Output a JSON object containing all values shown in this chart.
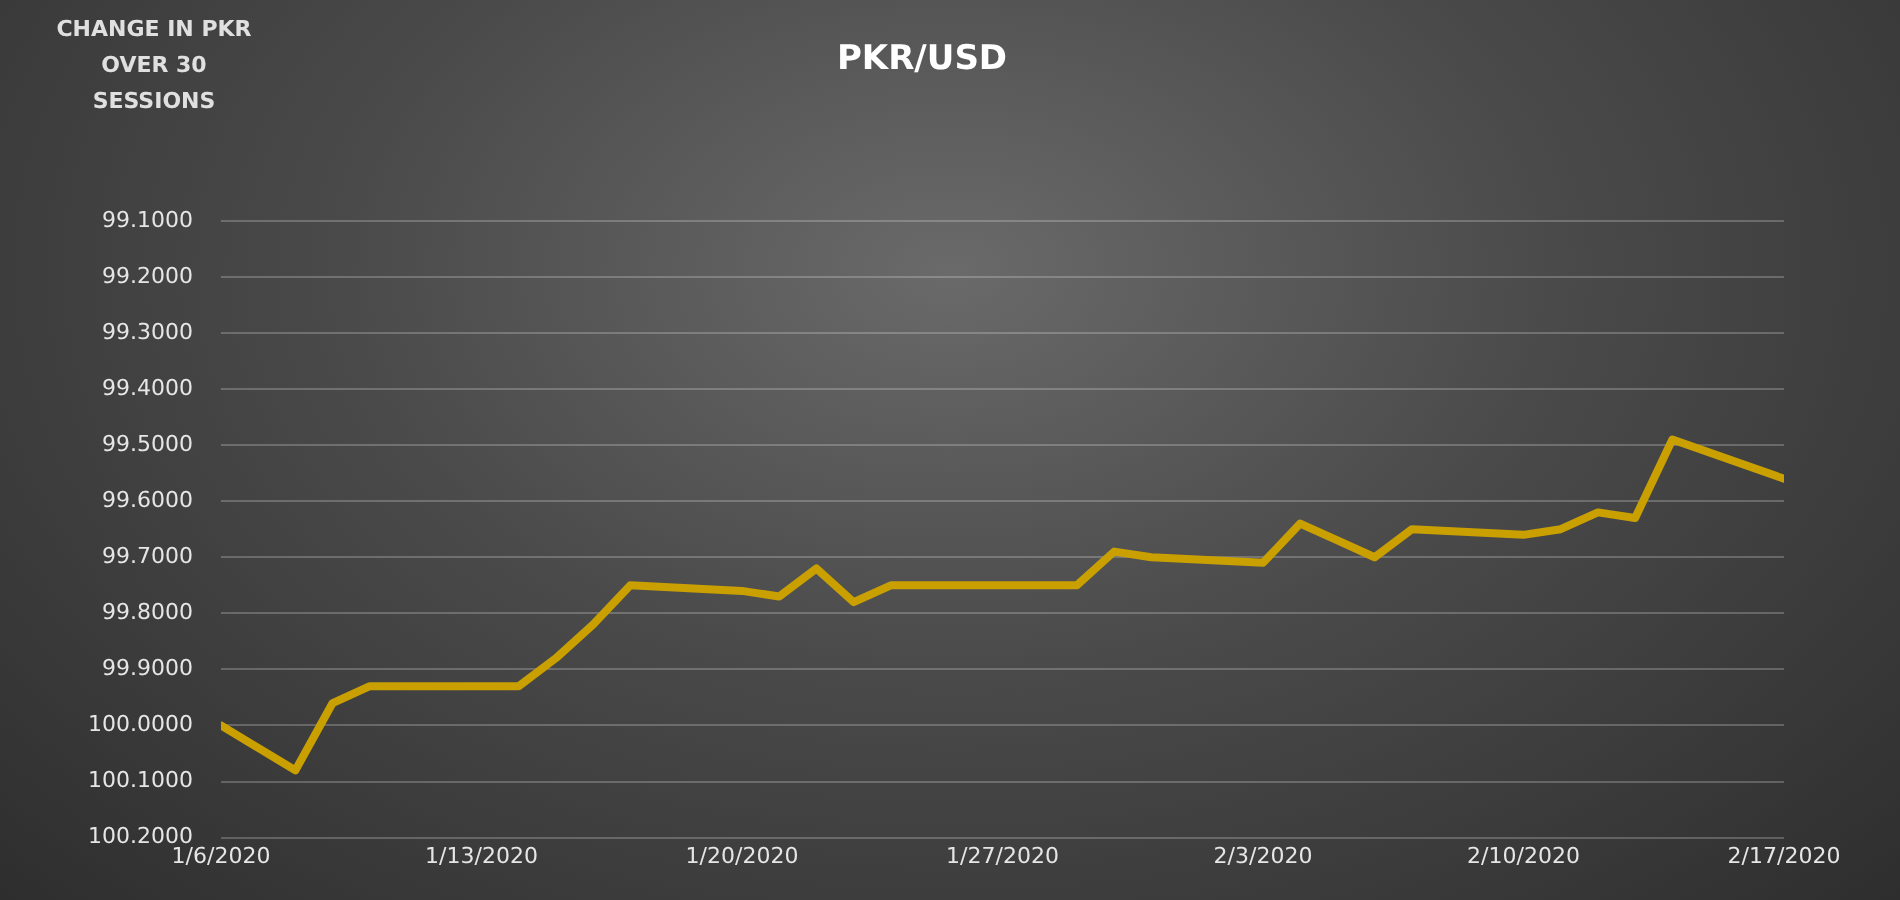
{
  "chart_data": {
    "type": "line",
    "title": "PKR/USD",
    "ylabel": "CHANGE IN PKR OVER 30 SESSIONS",
    "x": [
      "2020-01-06",
      "2020-01-07",
      "2020-01-08",
      "2020-01-09",
      "2020-01-10",
      "2020-01-13",
      "2020-01-14",
      "2020-01-15",
      "2020-01-16",
      "2020-01-17",
      "2020-01-20",
      "2020-01-21",
      "2020-01-22",
      "2020-01-23",
      "2020-01-24",
      "2020-01-27",
      "2020-01-28",
      "2020-01-29",
      "2020-01-30",
      "2020-01-31",
      "2020-02-03",
      "2020-02-04",
      "2020-02-05",
      "2020-02-06",
      "2020-02-07",
      "2020-02-10",
      "2020-02-11",
      "2020-02-12",
      "2020-02-13",
      "2020-02-14",
      "2020-02-17"
    ],
    "series": [
      {
        "color": "#c9a000",
        "values": [
          100.0,
          100.04,
          100.08,
          99.96,
          99.93,
          99.93,
          99.93,
          99.88,
          99.82,
          99.75,
          99.76,
          99.77,
          99.72,
          99.78,
          99.75,
          99.75,
          99.75,
          99.75,
          99.69,
          99.7,
          99.71,
          99.64,
          99.67,
          99.7,
          99.65,
          99.66,
          99.65,
          99.62,
          99.63,
          99.49,
          99.56
        ]
      }
    ],
    "xlim": [
      "2020-01-06",
      "2020-02-17"
    ],
    "xticks": [
      {
        "value": "2020-01-06",
        "label": "1/6/2020"
      },
      {
        "value": "2020-01-13",
        "label": "1/13/2020"
      },
      {
        "value": "2020-01-20",
        "label": "1/20/2020"
      },
      {
        "value": "2020-01-27",
        "label": "1/27/2020"
      },
      {
        "value": "2020-02-03",
        "label": "2/3/2020"
      },
      {
        "value": "2020-02-10",
        "label": "2/10/2020"
      },
      {
        "value": "2020-02-17",
        "label": "2/17/2020"
      }
    ],
    "ylim": [
      100.2,
      99.1
    ],
    "yticks": [
      {
        "value": 99.1,
        "label": "99.1000"
      },
      {
        "value": 99.2,
        "label": "99.2000"
      },
      {
        "value": 99.3,
        "label": "99.3000"
      },
      {
        "value": 99.4,
        "label": "99.4000"
      },
      {
        "value": 99.5,
        "label": "99.5000"
      },
      {
        "value": 99.6,
        "label": "99.6000"
      },
      {
        "value": 99.7,
        "label": "99.7000"
      },
      {
        "value": 99.8,
        "label": "99.8000"
      },
      {
        "value": 99.9,
        "label": "99.9000"
      },
      {
        "value": 100.0,
        "label": "100.0000"
      },
      {
        "value": 100.1,
        "label": "100.1000"
      },
      {
        "value": 100.2,
        "label": "100.2000"
      }
    ],
    "grid": "y",
    "legend": false,
    "marker": "none",
    "line_style": "solid"
  }
}
